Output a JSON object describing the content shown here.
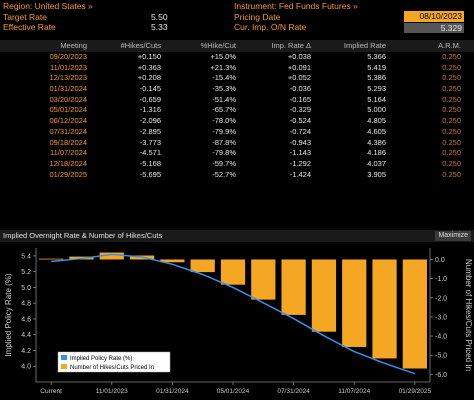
{
  "header": {
    "region_label": "Region: United States »",
    "target_rate_label": "Target Rate",
    "target_rate_value": "5.50",
    "effective_rate_label": "Effective Rate",
    "effective_rate_value": "5.33",
    "instrument_label": "Instrument: Fed Funds Futures »",
    "pricing_date_label": "Pricing Date",
    "pricing_date_value": "08/10/2023",
    "cur_imp_label": "Cur. Imp. O/N Rate",
    "cur_imp_value": "5.329"
  },
  "table": {
    "headers": [
      "Meeting",
      "#Hikes/Cuts",
      "%Hike/Cut",
      "Imp. Rate Δ",
      "Implied Rate",
      "A.R.M."
    ],
    "rows": [
      [
        "09/20/2023",
        "+0.150",
        "+15.0%",
        "+0.038",
        "5.366",
        "0.250"
      ],
      [
        "11/01/2023",
        "+0.363",
        "+21.3%",
        "+0.091",
        "5.419",
        "0.250"
      ],
      [
        "12/13/2023",
        "+0.208",
        "-15.4%",
        "+0.052",
        "5.386",
        "0.250"
      ],
      [
        "01/31/2024",
        "-0.145",
        "-35.3%",
        "-0.036",
        "5.293",
        "0.250"
      ],
      [
        "03/20/2024",
        "-0.659",
        "-51.4%",
        "-0.165",
        "5.164",
        "0.250"
      ],
      [
        "05/01/2024",
        "-1.316",
        "-65.7%",
        "-0.329",
        "5.000",
        "0.250"
      ],
      [
        "06/12/2024",
        "-2.096",
        "-78.0%",
        "-0.524",
        "4.805",
        "0.250"
      ],
      [
        "07/31/2024",
        "-2.895",
        "-79.9%",
        "-0.724",
        "4.605",
        "0.250"
      ],
      [
        "09/18/2024",
        "-3.773",
        "-87.8%",
        "-0.943",
        "4.386",
        "0.250"
      ],
      [
        "11/07/2024",
        "-4.571",
        "-79.8%",
        "-1.143",
        "4.186",
        "0.250"
      ],
      [
        "12/18/2024",
        "-5.168",
        "-59.7%",
        "-1.292",
        "4.037",
        "0.250"
      ],
      [
        "01/29/2025",
        "-5.695",
        "-52.7%",
        "-1.424",
        "3.905",
        "0.250"
      ]
    ]
  },
  "chart_panel": {
    "title": "Implied Overnight Rate & Number of Hikes/Cuts",
    "maximize_label": "Maximize"
  },
  "chart_data": {
    "type": "bar",
    "title": "",
    "categories": [
      "Current",
      "09/20/2023",
      "11/01/2023",
      "12/13/2023",
      "01/31/2024",
      "03/20/2024",
      "05/01/2024",
      "06/12/2024",
      "07/31/2024",
      "09/18/2024",
      "11/07/2024",
      "12/18/2024",
      "01/29/2025"
    ],
    "x_tick_labels": [
      "Current",
      "11/01/2023",
      "01/31/2024",
      "05/01/2024",
      "07/31/2024",
      "11/07/2024",
      "01/29/2025"
    ],
    "series": [
      {
        "name": "Implied Policy Rate (%)",
        "type": "line",
        "axis": "left",
        "color": "#3a8fe8",
        "values": [
          5.329,
          5.366,
          5.419,
          5.386,
          5.293,
          5.164,
          5.0,
          4.805,
          4.605,
          4.386,
          4.186,
          4.037,
          3.905
        ]
      },
      {
        "name": "Number of Hikes/Cuts Priced In",
        "type": "bar",
        "axis": "right",
        "color": "#f5a623",
        "values": [
          0,
          0.15,
          0.363,
          0.208,
          -0.145,
          -0.659,
          -1.316,
          -2.096,
          -2.895,
          -3.773,
          -4.571,
          -5.168,
          -5.695
        ]
      }
    ],
    "ylabel_left": "Implied Policy Rate (%)",
    "ylabel_right": "Number of Hikes/Cuts Priced In",
    "ylim_left": [
      3.8,
      5.5
    ],
    "yticks_left": [
      "5.4",
      "5.2",
      "5.0",
      "4.8",
      "4.6",
      "4.4",
      "4.2",
      "4.0"
    ],
    "ylim_right": [
      -6.4,
      0.6
    ],
    "yticks_right": [
      "0.0",
      "-1.0",
      "-2.0",
      "-3.0",
      "-4.0",
      "-5.0",
      "-6.0"
    ],
    "legend_position": "bottom-left",
    "grid": false
  }
}
